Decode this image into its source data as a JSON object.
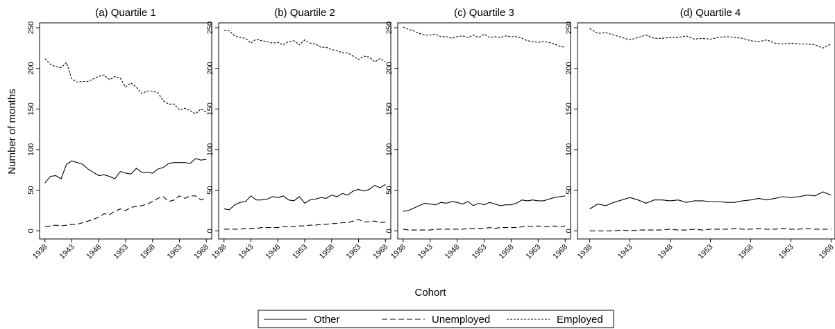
{
  "ylabel": "Number of months",
  "xlabel": "Cohort",
  "chart_data": [
    {
      "type": "line",
      "title": "(a) Quartile 1",
      "x": [
        1938,
        1939,
        1940,
        1941,
        1942,
        1943,
        1944,
        1945,
        1946,
        1947,
        1948,
        1949,
        1950,
        1951,
        1952,
        1953,
        1954,
        1955,
        1956,
        1957,
        1958,
        1959,
        1960,
        1961,
        1962,
        1963,
        1964,
        1965,
        1966,
        1967,
        1968
      ],
      "xlim": [
        1937,
        1969
      ],
      "xticks": [
        1938,
        1943,
        1948,
        1953,
        1958,
        1963,
        1968
      ],
      "ylim": [
        -10,
        256
      ],
      "yticks": [
        0,
        50,
        100,
        150,
        200,
        250
      ],
      "series": [
        {
          "name": "Other",
          "color": "#000000",
          "dash": "solid",
          "values": [
            59,
            67,
            68,
            64,
            82,
            86,
            84,
            82,
            76,
            72,
            68,
            69,
            67,
            64,
            73,
            71,
            70,
            77,
            72,
            72,
            71,
            76,
            78,
            83,
            84,
            84,
            84,
            83,
            89,
            87,
            88
          ]
        },
        {
          "name": "Unemployed",
          "color": "#000000",
          "dash": "long",
          "values": [
            5,
            6,
            7,
            6,
            7,
            8,
            8,
            10,
            12,
            14,
            17,
            21,
            20,
            24,
            27,
            25,
            29,
            30,
            31,
            33,
            36,
            40,
            42,
            36,
            38,
            43,
            40,
            43,
            43,
            38,
            41
          ]
        },
        {
          "name": "Employed",
          "color": "#000000",
          "dash": "short",
          "values": [
            212,
            205,
            202,
            201,
            207,
            187,
            183,
            184,
            184,
            187,
            190,
            192,
            186,
            190,
            188,
            177,
            182,
            177,
            169,
            172,
            172,
            170,
            160,
            156,
            156,
            149,
            151,
            148,
            144,
            150,
            146
          ]
        }
      ]
    },
    {
      "type": "line",
      "title": "(b) Quartile 2",
      "x": [
        1938,
        1939,
        1940,
        1941,
        1942,
        1943,
        1944,
        1945,
        1946,
        1947,
        1948,
        1949,
        1950,
        1951,
        1952,
        1953,
        1954,
        1955,
        1956,
        1957,
        1958,
        1959,
        1960,
        1961,
        1962,
        1963,
        1964,
        1965,
        1966,
        1967,
        1968
      ],
      "xlim": [
        1937,
        1969
      ],
      "xticks": [
        1938,
        1943,
        1948,
        1953,
        1958,
        1963,
        1968
      ],
      "ylim": [
        -10,
        256
      ],
      "yticks": [
        0,
        50,
        100,
        150,
        200,
        250
      ],
      "series": [
        {
          "name": "Other",
          "color": "#000000",
          "dash": "solid",
          "values": [
            27,
            26,
            32,
            35,
            36,
            43,
            38,
            38,
            39,
            42,
            41,
            43,
            38,
            37,
            42,
            34,
            38,
            39,
            41,
            40,
            44,
            42,
            46,
            44,
            49,
            51,
            49,
            51,
            56,
            53,
            57
          ]
        },
        {
          "name": "Unemployed",
          "color": "#000000",
          "dash": "long",
          "values": [
            2,
            2,
            2,
            2,
            3,
            3,
            3,
            4,
            4,
            4,
            4,
            5,
            5,
            5,
            6,
            6,
            7,
            7,
            8,
            8,
            9,
            9,
            10,
            10,
            12,
            14,
            11,
            11,
            12,
            10,
            11
          ]
        },
        {
          "name": "Employed",
          "color": "#000000",
          "dash": "short",
          "values": [
            247,
            246,
            240,
            238,
            237,
            231,
            236,
            234,
            233,
            231,
            232,
            229,
            233,
            234,
            229,
            235,
            231,
            230,
            226,
            226,
            223,
            222,
            219,
            219,
            215,
            211,
            215,
            214,
            208,
            212,
            208
          ]
        }
      ]
    },
    {
      "type": "line",
      "title": "(c) Quartile 3",
      "x": [
        1938,
        1939,
        1940,
        1941,
        1942,
        1943,
        1944,
        1945,
        1946,
        1947,
        1948,
        1949,
        1950,
        1951,
        1952,
        1953,
        1954,
        1955,
        1956,
        1957,
        1958,
        1959,
        1960,
        1961,
        1962,
        1963,
        1964,
        1965,
        1966,
        1967,
        1968
      ],
      "xlim": [
        1937,
        1969
      ],
      "xticks": [
        1938,
        1943,
        1948,
        1953,
        1958,
        1963,
        1968
      ],
      "ylim": [
        -10,
        256
      ],
      "yticks": [
        0,
        50,
        100,
        150,
        200,
        250
      ],
      "series": [
        {
          "name": "Other",
          "color": "#000000",
          "dash": "solid",
          "values": [
            24,
            25,
            28,
            31,
            34,
            33,
            32,
            35,
            34,
            36,
            35,
            33,
            36,
            31,
            34,
            32,
            35,
            33,
            31,
            32,
            32,
            34,
            38,
            37,
            38,
            37,
            37,
            39,
            41,
            42,
            43
          ]
        },
        {
          "name": "Unemployed",
          "color": "#000000",
          "dash": "long",
          "values": [
            2,
            1,
            1,
            1,
            1,
            1,
            2,
            2,
            2,
            2,
            2,
            2,
            3,
            3,
            3,
            3,
            4,
            3,
            4,
            4,
            4,
            4,
            5,
            6,
            5,
            6,
            5,
            5,
            6,
            5,
            6
          ]
        },
        {
          "name": "Employed",
          "color": "#000000",
          "dash": "short",
          "values": [
            251,
            248,
            246,
            243,
            241,
            241,
            242,
            239,
            239,
            237,
            239,
            240,
            238,
            241,
            238,
            242,
            238,
            239,
            238,
            240,
            239,
            239,
            237,
            234,
            233,
            232,
            233,
            232,
            230,
            227,
            226
          ]
        }
      ]
    },
    {
      "type": "line",
      "title": "(d) Quartile 4",
      "x": [
        1938,
        1939,
        1940,
        1941,
        1942,
        1943,
        1944,
        1945,
        1946,
        1947,
        1948,
        1949,
        1950,
        1951,
        1952,
        1953,
        1954,
        1955,
        1956,
        1957,
        1958,
        1959,
        1960,
        1961,
        1962,
        1963,
        1964,
        1965,
        1966,
        1967,
        1968
      ],
      "xlim": [
        1937,
        1969
      ],
      "xticks": [
        1938,
        1943,
        1948,
        1953,
        1958,
        1963,
        1968
      ],
      "ylim": [
        -10,
        256
      ],
      "yticks": [
        0,
        50,
        100,
        150,
        200,
        250
      ],
      "series": [
        {
          "name": "Other",
          "color": "#000000",
          "dash": "solid",
          "values": [
            27,
            33,
            31,
            35,
            38,
            41,
            38,
            34,
            38,
            38,
            37,
            38,
            35,
            37,
            37,
            36,
            36,
            35,
            35,
            37,
            38,
            40,
            38,
            40,
            42,
            41,
            42,
            44,
            43,
            48,
            44
          ]
        },
        {
          "name": "Unemployed",
          "color": "#000000",
          "dash": "long",
          "values": [
            0,
            0,
            0,
            0,
            1,
            0,
            1,
            1,
            1,
            1,
            2,
            1,
            1,
            2,
            1,
            2,
            2,
            2,
            3,
            2,
            2,
            3,
            2,
            2,
            3,
            2,
            2,
            3,
            2,
            2,
            2
          ]
        },
        {
          "name": "Employed",
          "color": "#000000",
          "dash": "short",
          "values": [
            249,
            243,
            244,
            241,
            238,
            235,
            238,
            241,
            237,
            237,
            238,
            238,
            240,
            236,
            237,
            236,
            238,
            239,
            238,
            237,
            234,
            233,
            235,
            231,
            230,
            231,
            230,
            230,
            229,
            225,
            230
          ]
        }
      ]
    }
  ]
}
